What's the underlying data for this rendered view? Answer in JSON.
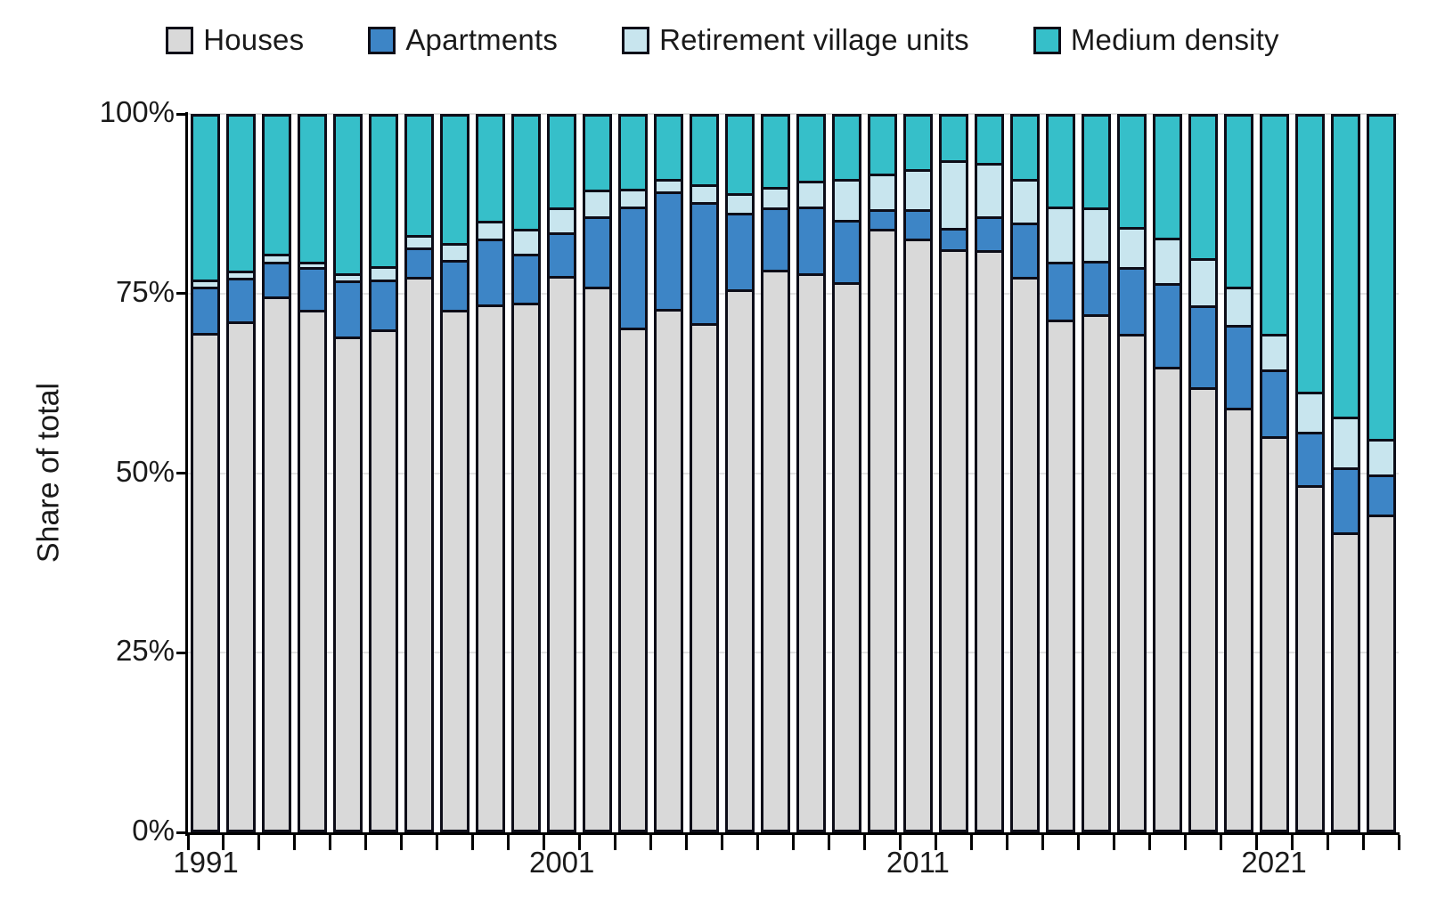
{
  "chart_data": {
    "type": "bar",
    "stacked": true,
    "percent_stacked": true,
    "title": "",
    "ylabel": "Share of total",
    "xlabel": "",
    "ylim": [
      0,
      100
    ],
    "yticks": [
      {
        "pct": 0,
        "label": "0%"
      },
      {
        "pct": 25,
        "label": "25%"
      },
      {
        "pct": 50,
        "label": "50%"
      },
      {
        "pct": 75,
        "label": "75%"
      },
      {
        "pct": 100,
        "label": "100%"
      }
    ],
    "grid": "horizontal",
    "legend_position": "top",
    "categories": [
      1991,
      1992,
      1993,
      1994,
      1995,
      1996,
      1997,
      1998,
      1999,
      2000,
      2001,
      2002,
      2003,
      2004,
      2005,
      2006,
      2007,
      2008,
      2009,
      2010,
      2011,
      2012,
      2013,
      2014,
      2015,
      2016,
      2017,
      2018,
      2019,
      2020,
      2021,
      2022,
      2023,
      2024
    ],
    "xticks": [
      {
        "index": 0,
        "label": "1991"
      },
      {
        "index": 10,
        "label": "2001"
      },
      {
        "index": 20,
        "label": "2011"
      },
      {
        "index": 30,
        "label": "2021"
      }
    ],
    "series": [
      {
        "name": "Houses",
        "color": "#d9d9d9",
        "values": [
          69.5,
          71.1,
          74.6,
          72.7,
          69.0,
          70.0,
          77.3,
          72.7,
          73.5,
          73.7,
          77.5,
          76.0,
          70.2,
          72.9,
          70.9,
          75.6,
          78.3,
          77.8,
          76.6,
          84.0,
          82.6,
          81.2,
          81.0,
          77.3,
          71.4,
          72.1,
          69.4,
          64.8,
          62.0,
          59.1,
          55.1,
          48.3,
          41.8,
          44.2
        ]
      },
      {
        "name": "Apartments",
        "color": "#3d85c6",
        "values": [
          6.5,
          6.1,
          4.8,
          6.0,
          7.8,
          7.0,
          4.1,
          7.0,
          9.2,
          6.8,
          6.0,
          9.8,
          16.9,
          16.3,
          16.8,
          10.6,
          8.7,
          9.3,
          8.6,
          2.8,
          4.2,
          2.9,
          4.7,
          7.6,
          8.0,
          7.5,
          9.3,
          11.7,
          11.4,
          11.5,
          9.3,
          7.5,
          9.0,
          5.6
        ]
      },
      {
        "name": "Retirement village units",
        "color": "#c8e5ee",
        "values": [
          0.9,
          1.0,
          1.1,
          0.7,
          1.0,
          1.8,
          1.8,
          2.3,
          2.4,
          3.5,
          3.5,
          3.7,
          2.5,
          1.8,
          2.5,
          2.8,
          2.8,
          3.6,
          5.7,
          4.9,
          5.5,
          9.4,
          7.5,
          6.0,
          7.7,
          7.4,
          5.6,
          6.3,
          6.5,
          5.4,
          5.0,
          5.5,
          7.1,
          5.0
        ]
      },
      {
        "name": "Medium density",
        "color": "#36bfc9",
        "values": [
          23.1,
          21.8,
          19.5,
          20.6,
          22.2,
          21.2,
          16.8,
          18.0,
          14.9,
          16.0,
          13.0,
          10.5,
          10.4,
          9.0,
          9.8,
          11.0,
          10.2,
          9.3,
          9.1,
          8.3,
          7.7,
          6.5,
          6.8,
          9.1,
          12.9,
          13.0,
          15.7,
          17.2,
          20.1,
          24.0,
          30.6,
          38.7,
          42.1,
          45.2
        ]
      }
    ]
  }
}
